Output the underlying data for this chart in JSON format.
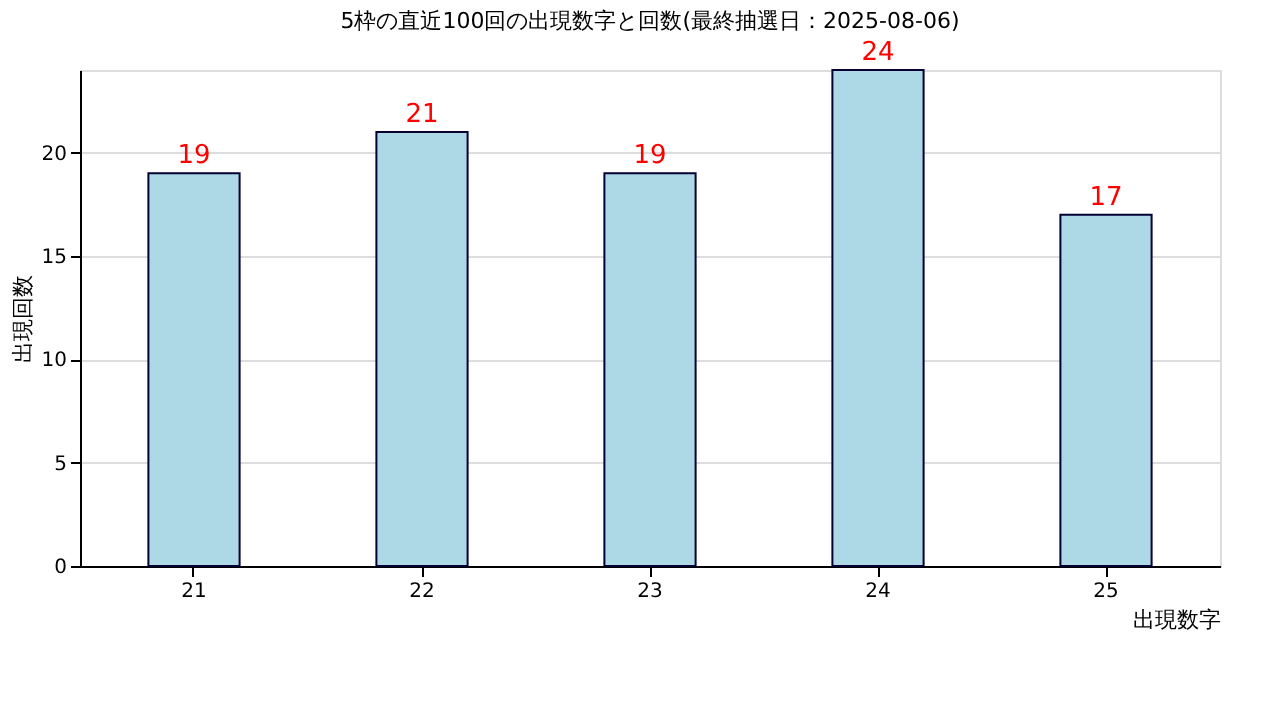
{
  "chart_data": {
    "type": "bar",
    "title": "5枠の直近100回の出現数字と回数(最終抽選日：2025-08-06)",
    "xlabel": "出現数字",
    "ylabel": "出現回数",
    "categories": [
      "21",
      "22",
      "23",
      "24",
      "25"
    ],
    "values": [
      19,
      21,
      19,
      24,
      17
    ],
    "color": "#add8e6",
    "ylim": [
      0,
      24
    ],
    "yticks": [
      0,
      5,
      10,
      15,
      20
    ],
    "grid": "y",
    "data_labels": true
  }
}
